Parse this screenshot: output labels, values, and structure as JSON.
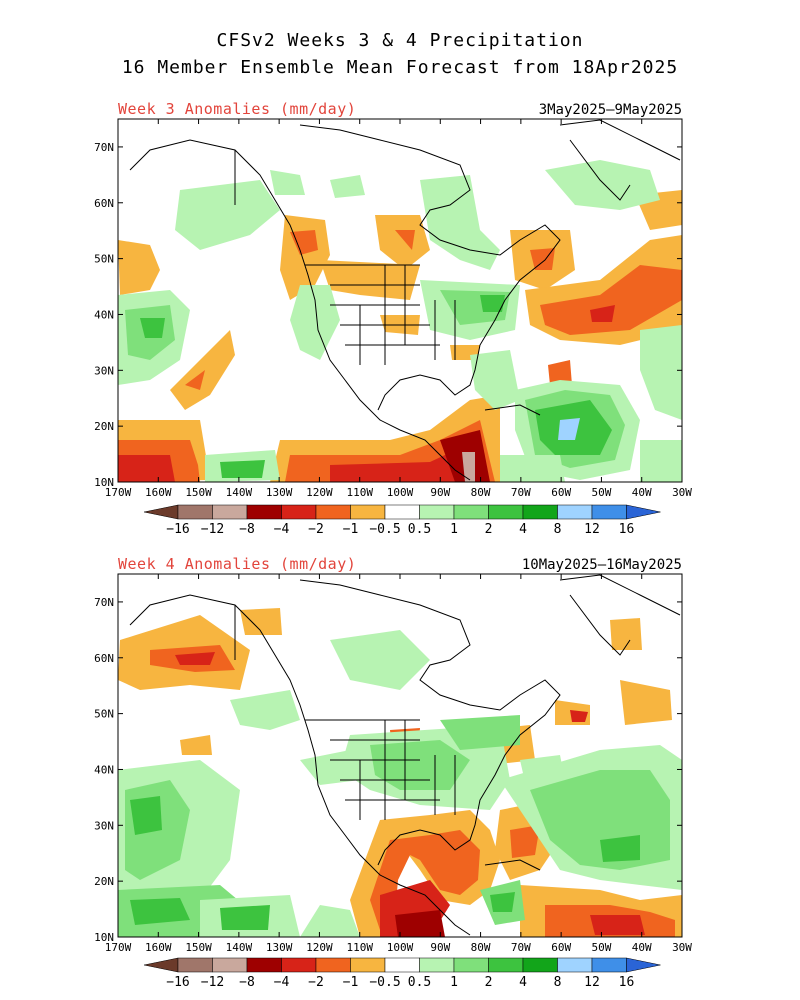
{
  "header": {
    "line1": "CFSv2 Weeks 3 & 4 Precipitation",
    "line2": "16 Member Ensemble Mean Forecast from 18Apr2025"
  },
  "panels": [
    {
      "title": "Week 3 Anomalies (mm/day)",
      "dates": "3May2025–9May2025"
    },
    {
      "title": "Week 4 Anomalies (mm/day)",
      "dates": "10May2025–16May2025"
    }
  ],
  "lat_labels": [
    "70N",
    "60N",
    "50N",
    "40N",
    "30N",
    "20N",
    "10N"
  ],
  "lon_labels": [
    "170W",
    "160W",
    "150W",
    "140W",
    "130W",
    "120W",
    "110W",
    "100W",
    "90W",
    "80W",
    "70W",
    "60W",
    "50W",
    "40W",
    "30W"
  ],
  "colorbar": {
    "labels": [
      "−16",
      "−12",
      "−8",
      "−4",
      "−2",
      "−1",
      "−0.5",
      "0.5",
      "1",
      "2",
      "4",
      "8",
      "12",
      "16"
    ],
    "colors": [
      "#6b3a2a",
      "#a0766a",
      "#c9a89d",
      "#9e0000",
      "#d72318",
      "#f0641f",
      "#f7b540",
      "#ffffff",
      "#b7f3b2",
      "#7fe07b",
      "#3dc33f",
      "#12a51a",
      "#9fd3ff",
      "#3f8fe8",
      "#2a64d6"
    ]
  },
  "colors": {
    "panel_title": "#e2453c",
    "dry_light": "#f7b540",
    "dry_mid": "#f0641f",
    "dry_strong": "#d72318",
    "dry_extreme": "#9e0000",
    "wet_light": "#b7f3b2",
    "wet_mid": "#7fe07b",
    "wet_strong": "#3dc33f",
    "wet_extreme": "#12a51a",
    "wet_very": "#9fd3ff"
  }
}
